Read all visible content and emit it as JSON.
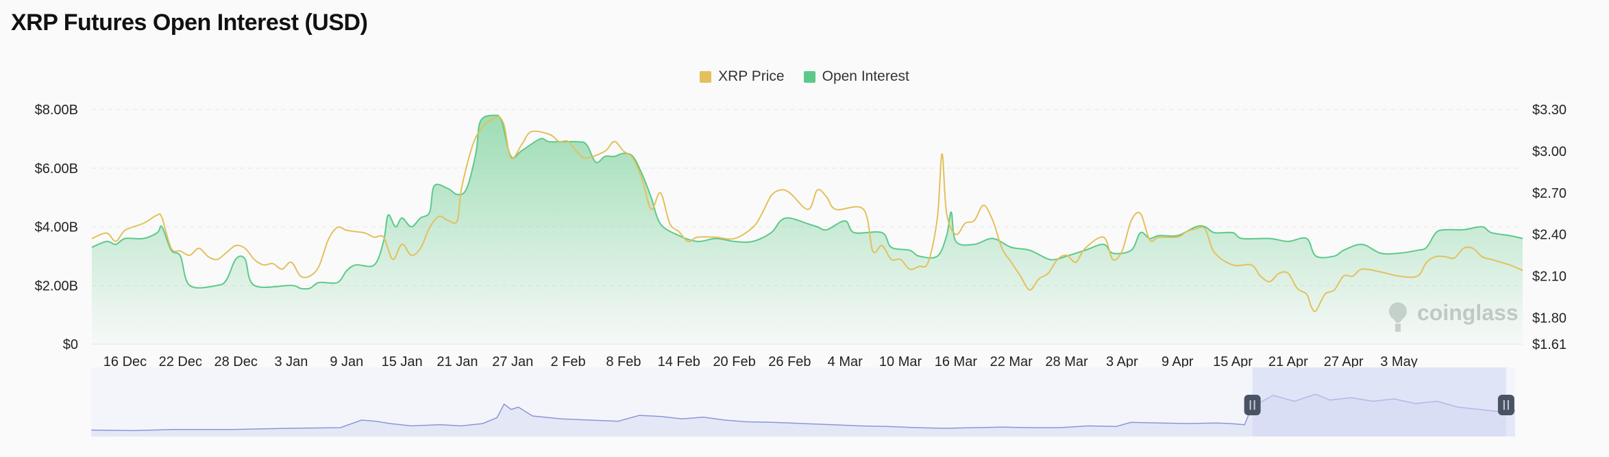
{
  "page": {
    "title": "XRP Futures Open Interest (USD)"
  },
  "watermark": {
    "text": "coinglass"
  },
  "colors": {
    "price": "#e3c05c",
    "oi": "#5cc98a",
    "oi_fill_top": "#7fd39f",
    "navigator": "#8b96d8",
    "navigator_fill": "#e4e8f6",
    "navigator_window": "#d0d6f4",
    "handle": "#4a5363"
  },
  "chart_data": {
    "type": "line",
    "title": "XRP Futures Open Interest (USD)",
    "legend": {
      "placement": "top-center",
      "entries": [
        "XRP Price",
        "Open Interest"
      ]
    },
    "x_ticks": [
      "16 Dec",
      "22 Dec",
      "28 Dec",
      "3 Jan",
      "9 Jan",
      "15 Jan",
      "21 Jan",
      "27 Jan",
      "2 Feb",
      "8 Feb",
      "14 Feb",
      "20 Feb",
      "26 Feb",
      "4 Mar",
      "10 Mar",
      "16 Mar",
      "22 Mar",
      "28 Mar",
      "3 Apr",
      "9 Apr",
      "15 Apr",
      "21 Apr",
      "27 Apr",
      "3 May"
    ],
    "x_range": [
      -3.6,
      151.4
    ],
    "y_left": {
      "ticks": [
        "$0",
        "$2.00B",
        "$4.00B",
        "$6.00B",
        "$8.00B"
      ],
      "values": [
        0,
        2,
        4,
        6,
        8
      ],
      "range": [
        0,
        8
      ]
    },
    "y_right": {
      "ticks": [
        "$1.61",
        "$1.80",
        "$2.10",
        "$2.40",
        "$2.70",
        "$3.00",
        "$3.30"
      ],
      "values": [
        1.61,
        1.8,
        2.1,
        2.4,
        2.7,
        3.0,
        3.3
      ],
      "range": [
        1.61,
        3.3
      ]
    },
    "grid": true,
    "series": [
      {
        "name": "Open Interest",
        "axis": "left",
        "unit": "USD billions",
        "points": [
          [
            -3.6,
            3.3
          ],
          [
            -2,
            3.5
          ],
          [
            -1,
            3.4
          ],
          [
            0,
            3.6
          ],
          [
            2,
            3.6
          ],
          [
            3.5,
            3.8
          ],
          [
            4,
            4.0
          ],
          [
            5,
            3.2
          ],
          [
            6,
            3.0
          ],
          [
            7,
            2.0
          ],
          [
            10,
            2.0
          ],
          [
            11,
            2.2
          ],
          [
            12,
            2.9
          ],
          [
            13,
            2.9
          ],
          [
            14,
            2.0
          ],
          [
            18,
            2.0
          ],
          [
            19,
            1.9
          ],
          [
            20,
            1.9
          ],
          [
            21,
            2.1
          ],
          [
            23,
            2.1
          ],
          [
            24,
            2.5
          ],
          [
            25,
            2.7
          ],
          [
            27,
            2.7
          ],
          [
            28,
            3.5
          ],
          [
            28.5,
            4.4
          ],
          [
            29.3,
            4.0
          ],
          [
            30,
            4.3
          ],
          [
            31,
            4.0
          ],
          [
            32,
            4.3
          ],
          [
            33,
            4.5
          ],
          [
            33.5,
            5.4
          ],
          [
            35,
            5.3
          ],
          [
            36,
            5.1
          ],
          [
            37,
            5.3
          ],
          [
            38,
            6.5
          ],
          [
            38.5,
            7.6
          ],
          [
            40,
            7.8
          ],
          [
            40.8,
            7.6
          ],
          [
            41.8,
            6.4
          ],
          [
            43,
            6.6
          ],
          [
            45,
            7.0
          ],
          [
            46,
            6.9
          ],
          [
            49,
            6.9
          ],
          [
            50,
            6.8
          ],
          [
            51,
            6.2
          ],
          [
            52,
            6.4
          ],
          [
            53,
            6.4
          ],
          [
            54,
            6.5
          ],
          [
            55,
            6.4
          ],
          [
            56,
            5.8
          ],
          [
            57,
            5.0
          ],
          [
            58,
            4.1
          ],
          [
            60,
            3.7
          ],
          [
            62,
            3.5
          ],
          [
            64,
            3.6
          ],
          [
            66,
            3.5
          ],
          [
            68,
            3.5
          ],
          [
            70,
            3.8
          ],
          [
            71,
            4.2
          ],
          [
            72,
            4.3
          ],
          [
            74,
            4.1
          ],
          [
            75,
            4.0
          ],
          [
            76,
            3.9
          ],
          [
            78,
            4.2
          ],
          [
            79,
            3.8
          ],
          [
            82,
            3.8
          ],
          [
            83,
            3.3
          ],
          [
            85,
            3.2
          ],
          [
            86,
            3.0
          ],
          [
            88,
            3.0
          ],
          [
            89,
            3.7
          ],
          [
            89.5,
            4.5
          ],
          [
            90,
            3.5
          ],
          [
            92,
            3.4
          ],
          [
            94,
            3.6
          ],
          [
            96,
            3.3
          ],
          [
            98,
            3.2
          ],
          [
            100,
            2.9
          ],
          [
            101,
            2.9
          ],
          [
            102,
            3.0
          ],
          [
            104,
            3.2
          ],
          [
            106,
            3.4
          ],
          [
            107,
            3.1
          ],
          [
            109,
            3.2
          ],
          [
            110,
            3.8
          ],
          [
            111,
            3.6
          ],
          [
            112,
            3.7
          ],
          [
            114,
            3.7
          ],
          [
            116,
            4.0
          ],
          [
            117,
            4.0
          ],
          [
            118,
            3.8
          ],
          [
            120,
            3.8
          ],
          [
            121,
            3.6
          ],
          [
            124,
            3.6
          ],
          [
            126,
            3.5
          ],
          [
            128,
            3.6
          ],
          [
            129,
            3.0
          ],
          [
            131,
            3.0
          ],
          [
            132,
            3.2
          ],
          [
            134,
            3.4
          ],
          [
            136,
            3.1
          ],
          [
            138,
            3.1
          ],
          [
            140,
            3.2
          ],
          [
            141,
            3.3
          ],
          [
            142,
            3.8
          ],
          [
            143,
            3.9
          ],
          [
            145,
            3.9
          ],
          [
            147,
            4.0
          ],
          [
            148,
            3.8
          ],
          [
            150,
            3.7
          ],
          [
            151.4,
            3.6
          ]
        ]
      },
      {
        "name": "XRP Price",
        "axis": "right",
        "unit": "USD",
        "points": [
          [
            -3.6,
            2.37
          ],
          [
            -2,
            2.41
          ],
          [
            -1,
            2.35
          ],
          [
            0,
            2.43
          ],
          [
            2,
            2.48
          ],
          [
            3.5,
            2.54
          ],
          [
            4,
            2.52
          ],
          [
            5,
            2.3
          ],
          [
            6,
            2.28
          ],
          [
            7,
            2.25
          ],
          [
            8,
            2.3
          ],
          [
            9,
            2.24
          ],
          [
            10,
            2.22
          ],
          [
            11,
            2.27
          ],
          [
            12,
            2.32
          ],
          [
            13,
            2.3
          ],
          [
            14,
            2.22
          ],
          [
            15,
            2.18
          ],
          [
            16,
            2.19
          ],
          [
            17,
            2.15
          ],
          [
            18,
            2.2
          ],
          [
            19,
            2.1
          ],
          [
            20,
            2.1
          ],
          [
            21,
            2.17
          ],
          [
            22,
            2.36
          ],
          [
            23,
            2.45
          ],
          [
            24,
            2.43
          ],
          [
            25,
            2.42
          ],
          [
            26,
            2.41
          ],
          [
            27,
            2.38
          ],
          [
            28,
            2.38
          ],
          [
            29,
            2.22
          ],
          [
            30,
            2.33
          ],
          [
            31,
            2.25
          ],
          [
            32,
            2.3
          ],
          [
            33,
            2.45
          ],
          [
            34,
            2.53
          ],
          [
            35,
            2.5
          ],
          [
            36,
            2.5
          ],
          [
            36.5,
            2.75
          ],
          [
            38,
            3.1
          ],
          [
            40,
            3.24
          ],
          [
            41,
            3.2
          ],
          [
            41.8,
            2.95
          ],
          [
            43,
            3.05
          ],
          [
            44,
            3.14
          ],
          [
            46,
            3.12
          ],
          [
            47,
            3.07
          ],
          [
            48,
            3.07
          ],
          [
            49,
            2.99
          ],
          [
            50,
            2.95
          ],
          [
            52,
            3.0
          ],
          [
            53,
            3.07
          ],
          [
            54,
            3.0
          ],
          [
            55,
            2.95
          ],
          [
            56,
            2.8
          ],
          [
            57,
            2.58
          ],
          [
            58,
            2.7
          ],
          [
            59,
            2.48
          ],
          [
            60,
            2.42
          ],
          [
            61,
            2.35
          ],
          [
            62,
            2.38
          ],
          [
            64,
            2.38
          ],
          [
            66,
            2.37
          ],
          [
            68,
            2.45
          ],
          [
            69,
            2.55
          ],
          [
            70,
            2.68
          ],
          [
            71,
            2.72
          ],
          [
            72,
            2.7
          ],
          [
            74,
            2.58
          ],
          [
            75,
            2.72
          ],
          [
            76,
            2.67
          ],
          [
            77,
            2.58
          ],
          [
            80,
            2.58
          ],
          [
            81,
            2.28
          ],
          [
            82,
            2.32
          ],
          [
            83,
            2.22
          ],
          [
            84,
            2.22
          ],
          [
            85,
            2.15
          ],
          [
            86,
            2.17
          ],
          [
            87,
            2.2
          ],
          [
            88,
            2.52
          ],
          [
            88.5,
            2.98
          ],
          [
            89,
            2.55
          ],
          [
            90,
            2.4
          ],
          [
            91,
            2.48
          ],
          [
            92,
            2.5
          ],
          [
            93,
            2.61
          ],
          [
            94,
            2.5
          ],
          [
            95,
            2.3
          ],
          [
            96,
            2.2
          ],
          [
            97,
            2.1
          ],
          [
            98,
            2.0
          ],
          [
            99,
            2.08
          ],
          [
            100,
            2.12
          ],
          [
            101,
            2.22
          ],
          [
            102,
            2.25
          ],
          [
            103,
            2.2
          ],
          [
            104,
            2.3
          ],
          [
            106,
            2.38
          ],
          [
            107,
            2.22
          ],
          [
            108,
            2.28
          ],
          [
            109,
            2.5
          ],
          [
            110,
            2.55
          ],
          [
            111,
            2.36
          ],
          [
            112,
            2.38
          ],
          [
            114,
            2.38
          ],
          [
            115,
            2.42
          ],
          [
            116,
            2.44
          ],
          [
            117,
            2.44
          ],
          [
            118,
            2.27
          ],
          [
            120,
            2.18
          ],
          [
            122,
            2.18
          ],
          [
            123,
            2.1
          ],
          [
            124,
            2.06
          ],
          [
            125,
            2.12
          ],
          [
            126,
            2.12
          ],
          [
            127,
            2.01
          ],
          [
            128,
            1.97
          ],
          [
            128.5,
            1.88
          ],
          [
            129,
            1.85
          ],
          [
            130,
            1.97
          ],
          [
            131,
            2.0
          ],
          [
            132,
            2.1
          ],
          [
            133,
            2.1
          ],
          [
            134,
            2.15
          ],
          [
            136,
            2.13
          ],
          [
            138,
            2.1
          ],
          [
            140,
            2.1
          ],
          [
            141,
            2.2
          ],
          [
            142,
            2.24
          ],
          [
            143,
            2.24
          ],
          [
            144,
            2.23
          ],
          [
            145,
            2.3
          ],
          [
            146,
            2.3
          ],
          [
            147,
            2.24
          ],
          [
            148,
            2.22
          ],
          [
            150,
            2.18
          ],
          [
            151.4,
            2.14
          ]
        ]
      }
    ],
    "navigator": {
      "type": "area",
      "selected_range": [
        0.8155,
        0.9937
      ],
      "points": [
        [
          0,
          0.11
        ],
        [
          0.03,
          0.1
        ],
        [
          0.06,
          0.12
        ],
        [
          0.1,
          0.12
        ],
        [
          0.14,
          0.14
        ],
        [
          0.175,
          0.15
        ],
        [
          0.19,
          0.28
        ],
        [
          0.2,
          0.26
        ],
        [
          0.21,
          0.22
        ],
        [
          0.225,
          0.18
        ],
        [
          0.245,
          0.2
        ],
        [
          0.26,
          0.18
        ],
        [
          0.275,
          0.22
        ],
        [
          0.285,
          0.32
        ],
        [
          0.29,
          0.55
        ],
        [
          0.295,
          0.46
        ],
        [
          0.3,
          0.5
        ],
        [
          0.31,
          0.35
        ],
        [
          0.33,
          0.3
        ],
        [
          0.35,
          0.28
        ],
        [
          0.37,
          0.26
        ],
        [
          0.385,
          0.36
        ],
        [
          0.4,
          0.34
        ],
        [
          0.415,
          0.3
        ],
        [
          0.43,
          0.33
        ],
        [
          0.445,
          0.28
        ],
        [
          0.46,
          0.25
        ],
        [
          0.48,
          0.24
        ],
        [
          0.5,
          0.22
        ],
        [
          0.52,
          0.2
        ],
        [
          0.54,
          0.18
        ],
        [
          0.56,
          0.17
        ],
        [
          0.58,
          0.15
        ],
        [
          0.6,
          0.14
        ],
        [
          0.62,
          0.15
        ],
        [
          0.64,
          0.16
        ],
        [
          0.66,
          0.15
        ],
        [
          0.68,
          0.15
        ],
        [
          0.7,
          0.18
        ],
        [
          0.72,
          0.17
        ],
        [
          0.73,
          0.24
        ],
        [
          0.75,
          0.23
        ],
        [
          0.77,
          0.22
        ],
        [
          0.79,
          0.23
        ],
        [
          0.8,
          0.22
        ],
        [
          0.81,
          0.2
        ],
        [
          0.815,
          0.5
        ],
        [
          0.83,
          0.7
        ],
        [
          0.845,
          0.6
        ],
        [
          0.86,
          0.72
        ],
        [
          0.87,
          0.62
        ],
        [
          0.885,
          0.66
        ],
        [
          0.9,
          0.6
        ],
        [
          0.915,
          0.64
        ],
        [
          0.93,
          0.56
        ],
        [
          0.945,
          0.6
        ],
        [
          0.96,
          0.5
        ],
        [
          0.975,
          0.46
        ],
        [
          0.99,
          0.42
        ],
        [
          1.0,
          0.44
        ]
      ]
    }
  }
}
